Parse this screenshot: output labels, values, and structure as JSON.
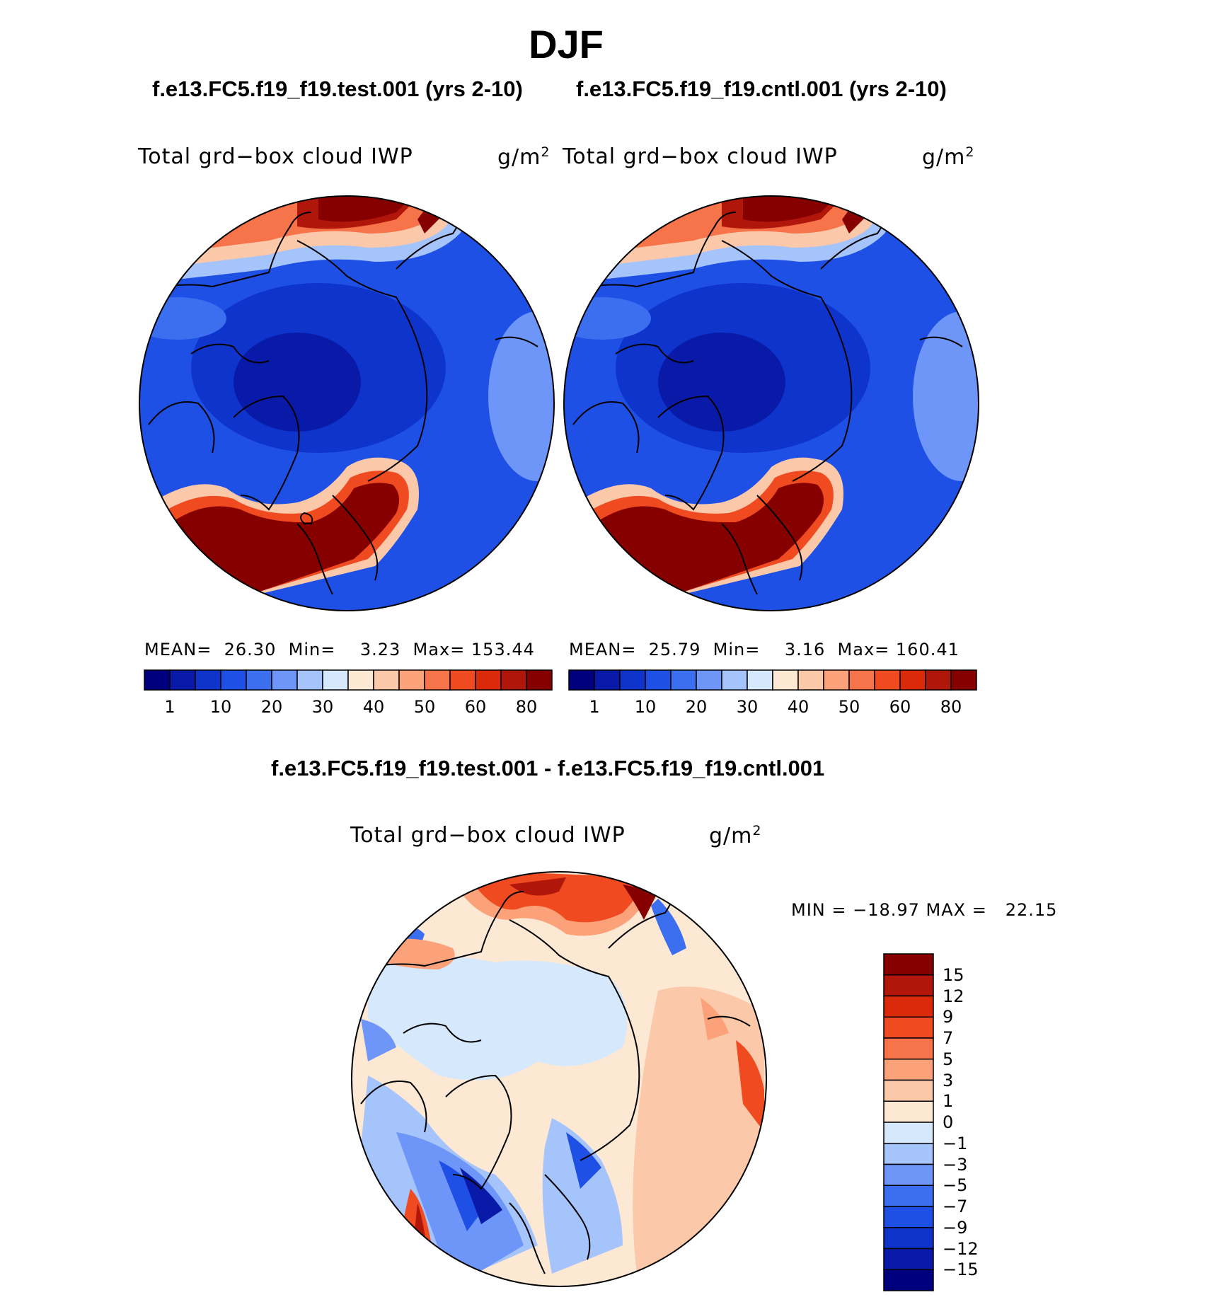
{
  "title": "DJF",
  "cases": {
    "test": "f.e13.FC5.f19_f19.test.001 (yrs 2-10)",
    "cntl": "f.e13.FC5.f19_f19.cntl.001 (yrs 2-10)"
  },
  "variable": "Total grd−box cloud IWP",
  "units": {
    "base": "g/m",
    "exp": "2"
  },
  "panels": [
    {
      "stats": {
        "mean_label": "MEAN=",
        "mean": "26.30",
        "min_label": "Min=",
        "min": "3.23",
        "max_label": "Max=",
        "max": "153.44"
      }
    },
    {
      "stats": {
        "mean_label": "MEAN=",
        "mean": "25.79",
        "min_label": "Min=",
        "min": "3.16",
        "max_label": "Max=",
        "max": "160.41"
      }
    }
  ],
  "diff": {
    "title": "f.e13.FC5.f19_f19.test.001 - f.e13.FC5.f19_f19.cntl.001",
    "minmax": "MIN = −18.97 MAX =   22.15"
  },
  "colorbar_main": {
    "labels": [
      "1",
      "10",
      "20",
      "30",
      "40",
      "50",
      "60",
      "80"
    ],
    "colors": [
      "#00007f",
      "#0a1aa8",
      "#0e34cc",
      "#1e50e6",
      "#3c6ef0",
      "#6e96f8",
      "#a6c4fc",
      "#d6e8fc",
      "#fde8d4",
      "#fcc8aa",
      "#fba27a",
      "#f7734a",
      "#f04a20",
      "#db2a0a",
      "#b0170a",
      "#870000"
    ]
  },
  "colorbar_diff": {
    "labels": [
      "15",
      "12",
      "9",
      "7",
      "5",
      "3",
      "1",
      "0",
      "−1",
      "−3",
      "−5",
      "−7",
      "−9",
      "−12",
      "−15"
    ],
    "colors": [
      "#870000",
      "#b0170a",
      "#db2a0a",
      "#f04a20",
      "#f7734a",
      "#fba27a",
      "#fcc8aa",
      "#fde8d4",
      "#d6e8fc",
      "#a6c4fc",
      "#6e96f8",
      "#3c6ef0",
      "#1e50e6",
      "#0e34cc",
      "#0a1aa8",
      "#00007f"
    ]
  }
}
